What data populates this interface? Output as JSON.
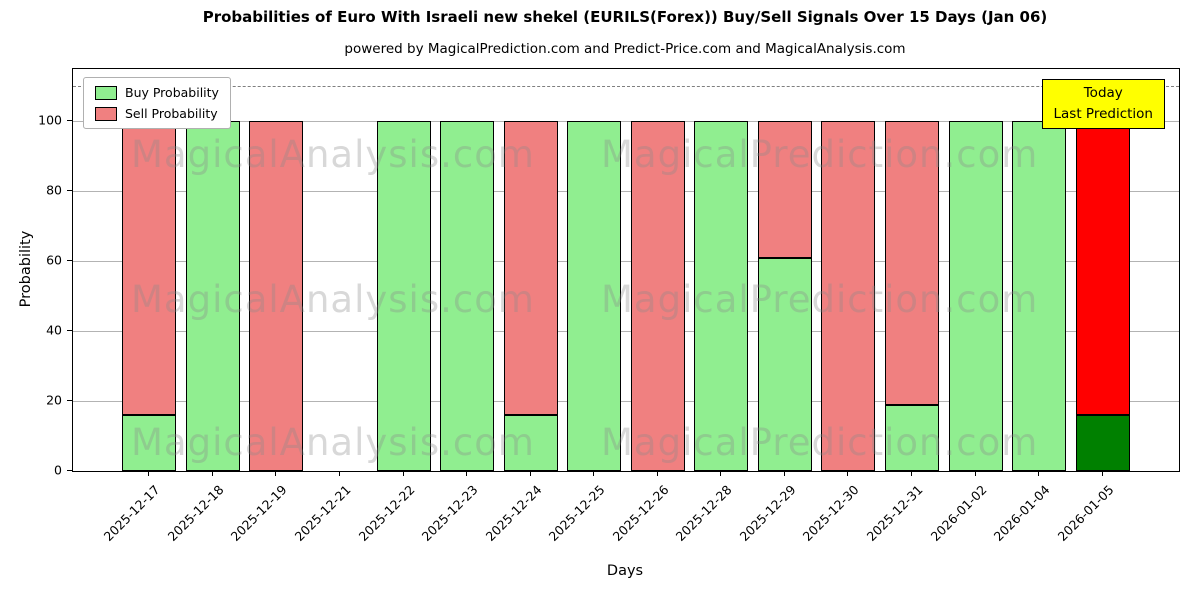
{
  "figure": {
    "title": "Probabilities of Euro With Israeli new shekel (EURILS(Forex)) Buy/Sell Signals Over 15 Days (Jan 06)",
    "subtitle": "powered by MagicalPrediction.com and Predict-Price.com and MagicalAnalysis.com"
  },
  "axes": {
    "xlabel": "Days",
    "ylabel": "Probability",
    "yticks": [
      0,
      20,
      40,
      60,
      80,
      100
    ],
    "ylim": [
      0,
      115
    ],
    "dashed_line_y": 110,
    "grid": "horizontal"
  },
  "legend": {
    "position": "upper-left",
    "items": [
      {
        "label": "Buy Probability",
        "color": "#90ee90"
      },
      {
        "label": "Sell Probability",
        "color": "#f08080"
      }
    ]
  },
  "annotation": {
    "lines": [
      "Today",
      "Last Prediction"
    ],
    "bg": "#ffff00"
  },
  "watermarks": [
    "MagicalAnalysis.com",
    "MagicalPrediction.com"
  ],
  "colors": {
    "buy": "#90ee90",
    "sell": "#f08080",
    "today_buy": "#008000",
    "today_sell": "#ff0000",
    "bar_edge": "#000000",
    "grid": "#b3b3b3",
    "dashed_line": "#7f7f7f",
    "annotation_bg": "#ffff00",
    "watermark": "#8a8a8a"
  },
  "chart_data": {
    "type": "bar",
    "stacked": true,
    "title": "Probabilities of Euro With Israeli new shekel (EURILS(Forex)) Buy/Sell Signals Over 15 Days (Jan 06)",
    "xlabel": "Days",
    "ylabel": "Probability",
    "ylim": [
      0,
      115
    ],
    "legend_position": "upper-left",
    "categories": [
      "2025-12-17",
      "2025-12-18",
      "2025-12-19",
      "2025-12-21",
      "2025-12-22",
      "2025-12-23",
      "2025-12-24",
      "2025-12-25",
      "2025-12-26",
      "2025-12-28",
      "2025-12-29",
      "2025-12-30",
      "2025-12-31",
      "2026-01-02",
      "2026-01-04",
      "2026-01-05"
    ],
    "series": [
      {
        "name": "Buy Probability",
        "color": "#90ee90",
        "values": [
          16,
          100,
          0,
          0,
          100,
          100,
          16,
          100,
          0,
          100,
          61,
          0,
          19,
          100,
          100,
          16
        ]
      },
      {
        "name": "Sell Probability",
        "color": "#f08080",
        "values": [
          84,
          0,
          100,
          0,
          0,
          0,
          84,
          0,
          100,
          0,
          39,
          100,
          81,
          0,
          0,
          84
        ]
      }
    ],
    "today_index": 15,
    "today_colors": {
      "buy": "#008000",
      "sell": "#ff0000"
    }
  }
}
